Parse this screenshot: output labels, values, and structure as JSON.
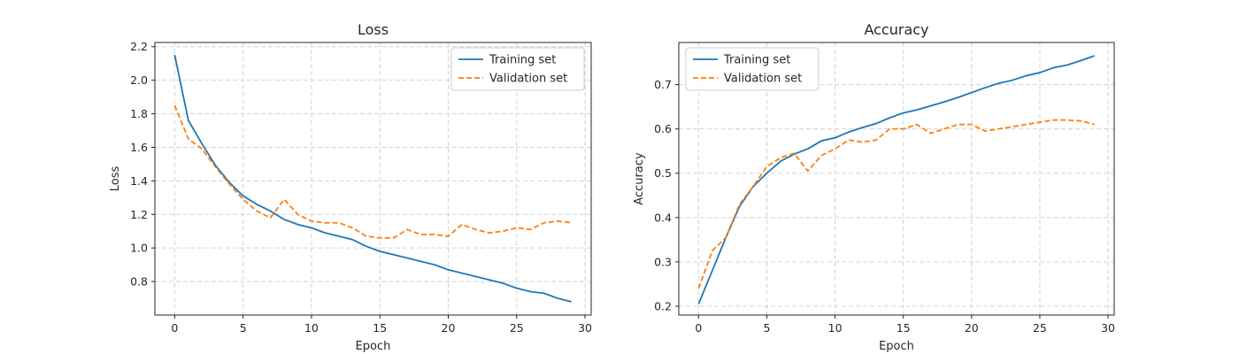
{
  "colors": {
    "training": "#1f77b4",
    "validation": "#ff7f0e",
    "grid": "#d3d3d3",
    "axis": "#262626"
  },
  "chart_data": [
    {
      "type": "line",
      "title": "Loss",
      "xlabel": "Epoch",
      "ylabel": "Loss",
      "xlim": [
        -1.45,
        30.45
      ],
      "ylim": [
        0.6,
        2.225
      ],
      "xticks": [
        0,
        5,
        10,
        15,
        20,
        25,
        30
      ],
      "yticks": [
        0.8,
        1.0,
        1.2,
        1.4,
        1.6,
        1.8,
        2.0,
        2.2
      ],
      "ytick_labels": [
        "0.8",
        "1.0",
        "1.2",
        "1.4",
        "1.6",
        "1.8",
        "2.0",
        "2.2"
      ],
      "grid": true,
      "legend_position": "top-right",
      "x": [
        0,
        1,
        2,
        3,
        4,
        5,
        6,
        7,
        8,
        9,
        10,
        11,
        12,
        13,
        14,
        15,
        16,
        17,
        18,
        19,
        20,
        21,
        22,
        23,
        24,
        25,
        26,
        27,
        28,
        29
      ],
      "series": [
        {
          "name": "Training set",
          "style": "solid",
          "values": [
            2.15,
            1.76,
            1.62,
            1.49,
            1.39,
            1.31,
            1.26,
            1.22,
            1.17,
            1.14,
            1.12,
            1.09,
            1.07,
            1.05,
            1.01,
            0.98,
            0.96,
            0.94,
            0.92,
            0.9,
            0.87,
            0.85,
            0.83,
            0.81,
            0.79,
            0.76,
            0.74,
            0.73,
            0.7,
            0.68
          ]
        },
        {
          "name": "Validation set",
          "style": "dashed",
          "values": [
            1.85,
            1.65,
            1.59,
            1.48,
            1.38,
            1.29,
            1.22,
            1.18,
            1.29,
            1.2,
            1.16,
            1.15,
            1.15,
            1.12,
            1.07,
            1.06,
            1.06,
            1.11,
            1.08,
            1.08,
            1.07,
            1.14,
            1.11,
            1.09,
            1.1,
            1.12,
            1.11,
            1.15,
            1.16,
            1.15
          ]
        }
      ]
    },
    {
      "type": "line",
      "title": "Accuracy",
      "xlabel": "Epoch",
      "ylabel": "Accuracy",
      "xlim": [
        -1.45,
        30.45
      ],
      "ylim": [
        0.18,
        0.795
      ],
      "xticks": [
        0,
        5,
        10,
        15,
        20,
        25,
        30
      ],
      "yticks": [
        0.2,
        0.3,
        0.4,
        0.5,
        0.6,
        0.7
      ],
      "ytick_labels": [
        "0.2",
        "0.3",
        "0.4",
        "0.5",
        "0.6",
        "0.7"
      ],
      "grid": true,
      "legend_position": "top-left",
      "x": [
        0,
        1,
        2,
        3,
        4,
        5,
        6,
        7,
        8,
        9,
        10,
        11,
        12,
        13,
        14,
        15,
        16,
        17,
        18,
        19,
        20,
        21,
        22,
        23,
        24,
        25,
        26,
        27,
        28,
        29
      ],
      "series": [
        {
          "name": "Training set",
          "style": "solid",
          "values": [
            0.205,
            0.28,
            0.355,
            0.425,
            0.47,
            0.5,
            0.527,
            0.543,
            0.555,
            0.573,
            0.58,
            0.593,
            0.603,
            0.612,
            0.625,
            0.636,
            0.643,
            0.652,
            0.661,
            0.671,
            0.682,
            0.693,
            0.703,
            0.71,
            0.72,
            0.727,
            0.738,
            0.744,
            0.754,
            0.765
          ]
        },
        {
          "name": "Validation set",
          "style": "dashed",
          "values": [
            0.24,
            0.325,
            0.355,
            0.43,
            0.47,
            0.515,
            0.535,
            0.545,
            0.505,
            0.54,
            0.555,
            0.575,
            0.57,
            0.575,
            0.6,
            0.6,
            0.61,
            0.59,
            0.6,
            0.61,
            0.61,
            0.595,
            0.6,
            0.605,
            0.61,
            0.615,
            0.62,
            0.62,
            0.618,
            0.61
          ]
        }
      ]
    }
  ]
}
